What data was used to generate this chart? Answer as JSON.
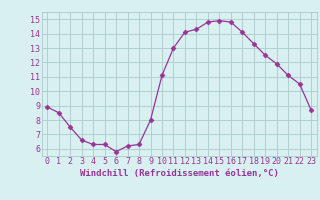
{
  "x": [
    0,
    1,
    2,
    3,
    4,
    5,
    6,
    7,
    8,
    9,
    10,
    11,
    12,
    13,
    14,
    15,
    16,
    17,
    18,
    19,
    20,
    21,
    22,
    23
  ],
  "y": [
    8.9,
    8.5,
    7.5,
    6.6,
    6.3,
    6.3,
    5.8,
    6.2,
    6.3,
    8.0,
    11.1,
    13.0,
    14.1,
    14.3,
    14.8,
    14.9,
    14.8,
    14.1,
    13.3,
    12.5,
    11.9,
    11.1,
    10.5,
    8.7
  ],
  "line_color": "#993399",
  "marker": "D",
  "marker_size": 2.5,
  "bg_color": "#d8f0f0",
  "grid_color": "#aacccc",
  "xlabel": "Windchill (Refroidissement éolien,°C)",
  "xlabel_color": "#993399",
  "xlabel_fontsize": 6.5,
  "tick_color": "#993399",
  "tick_fontsize": 6.0,
  "ylim": [
    5.5,
    15.5
  ],
  "yticks": [
    6,
    7,
    8,
    9,
    10,
    11,
    12,
    13,
    14,
    15
  ],
  "xlim": [
    -0.5,
    23.5
  ],
  "xticks": [
    0,
    1,
    2,
    3,
    4,
    5,
    6,
    7,
    8,
    9,
    10,
    11,
    12,
    13,
    14,
    15,
    16,
    17,
    18,
    19,
    20,
    21,
    22,
    23
  ]
}
